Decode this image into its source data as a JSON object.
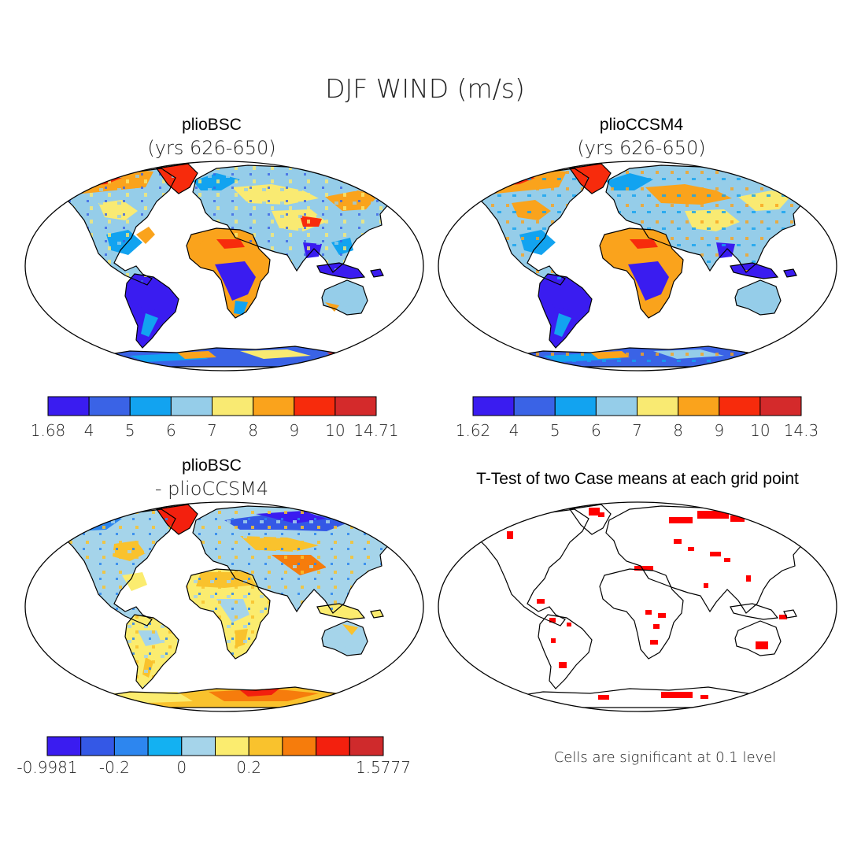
{
  "figure": {
    "title": "DJF WIND (m/s)"
  },
  "panels": [
    {
      "id": "tl",
      "title": "plioBSC",
      "subtitle": "(yrs 626-650)",
      "kind": "field",
      "colorbar": {
        "colors": [
          "#3a1cf0",
          "#3a63e6",
          "#12a3f0",
          "#95cde9",
          "#f9ea72",
          "#faa31c",
          "#f72b0c",
          "#d42a2b"
        ],
        "labels": [
          "1.68",
          "4",
          "5",
          "6",
          "7",
          "8",
          "9",
          "10",
          "14.71"
        ]
      }
    },
    {
      "id": "tr",
      "title": "plioCCSM4",
      "subtitle": "(yrs 626-650)",
      "kind": "field",
      "colorbar": {
        "colors": [
          "#3a1cf0",
          "#3a63e6",
          "#12a3f0",
          "#95cde9",
          "#f9ea72",
          "#faa31c",
          "#f72b0c",
          "#d42a2b"
        ],
        "labels": [
          "1.62",
          "4",
          "5",
          "6",
          "7",
          "8",
          "9",
          "10",
          "14.3"
        ]
      }
    },
    {
      "id": "bl",
      "title": "plioBSC",
      "subtitle": "- plioCCSM4",
      "kind": "difference",
      "colorbar": {
        "colors": [
          "#3a1cf0",
          "#3458e6",
          "#2d86ef",
          "#13b1f2",
          "#a5d4ea",
          "#fbec6f",
          "#f9c22d",
          "#f67c0c",
          "#f3200e",
          "#cf2a2c"
        ],
        "labels": [
          "-0.9981",
          "",
          "-0.2",
          "",
          "0",
          "",
          "0.2",
          "",
          "",
          "",
          "1.5777"
        ]
      }
    },
    {
      "id": "br",
      "title": "T-Test of two Case means at each grid point",
      "kind": "significance",
      "footnote": "Cells are significant at 0.1 level"
    }
  ],
  "colors": {
    "significant": "#ff0000",
    "coast": "#000000"
  }
}
